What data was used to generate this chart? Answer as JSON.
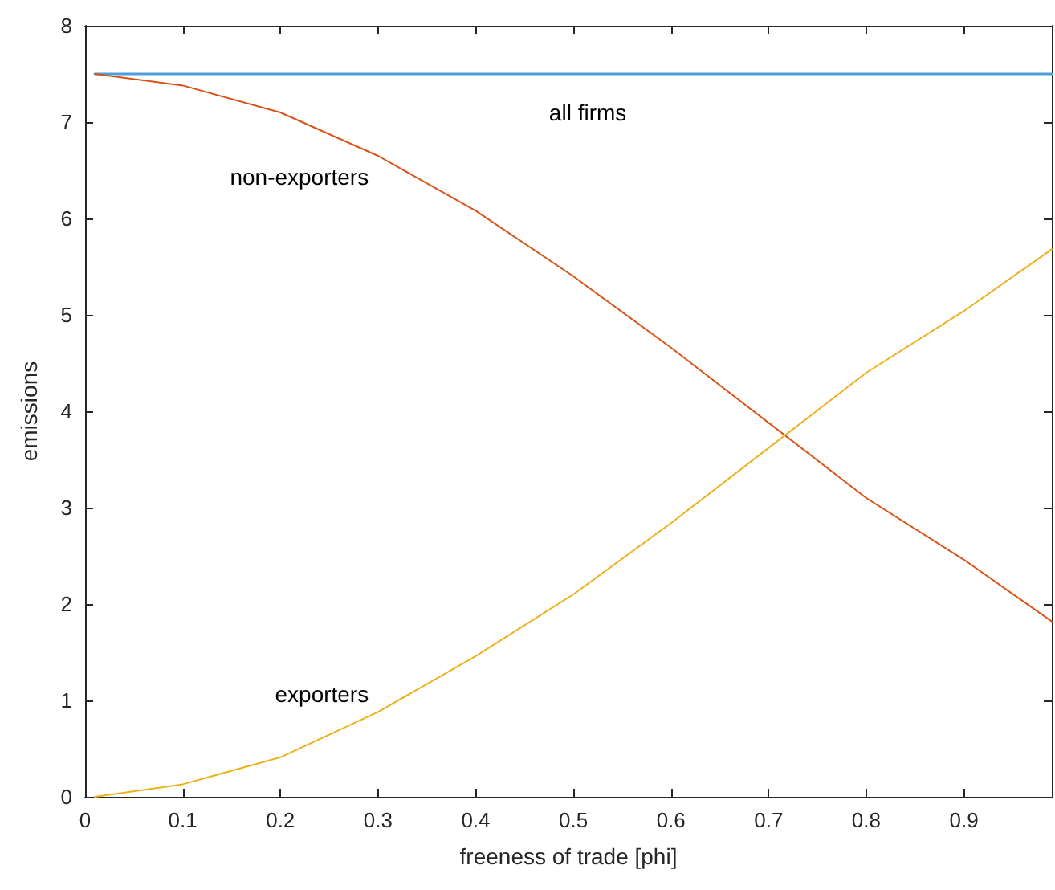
{
  "chart_data": {
    "type": "line",
    "xlabel": "freeness of trade [phi]",
    "ylabel": "emissions",
    "xlim": [
      0,
      0.99
    ],
    "xticks": [
      0,
      0.1,
      0.2,
      0.3,
      0.4,
      0.5,
      0.6,
      0.7,
      0.8,
      0.9
    ],
    "ylim": [
      0,
      8
    ],
    "yticks": [
      0,
      1,
      2,
      3,
      4,
      5,
      6,
      7,
      8
    ],
    "grid": false,
    "legend": false,
    "marker": "none",
    "line_style": "solid",
    "series": [
      {
        "name": "all firms",
        "color": "#4d9fdb",
        "x": [
          0.01,
          0.99
        ],
        "values": [
          7.5,
          7.5
        ]
      },
      {
        "name": "non-exporters",
        "color": "#d95319",
        "x": [
          0.01,
          0.1,
          0.2,
          0.3,
          0.4,
          0.5,
          0.6,
          0.7,
          0.8,
          0.9,
          0.99
        ],
        "values": [
          7.5,
          7.38,
          7.1,
          6.65,
          6.08,
          5.4,
          4.66,
          3.88,
          3.1,
          2.46,
          1.82
        ]
      },
      {
        "name": "exporters",
        "color": "#edb120",
        "x": [
          0.01,
          0.1,
          0.2,
          0.3,
          0.4,
          0.5,
          0.6,
          0.7,
          0.8,
          0.9,
          0.99
        ],
        "values": [
          0,
          0.13,
          0.41,
          0.88,
          1.46,
          2.1,
          2.84,
          3.62,
          4.4,
          5.04,
          5.68
        ]
      }
    ]
  }
}
